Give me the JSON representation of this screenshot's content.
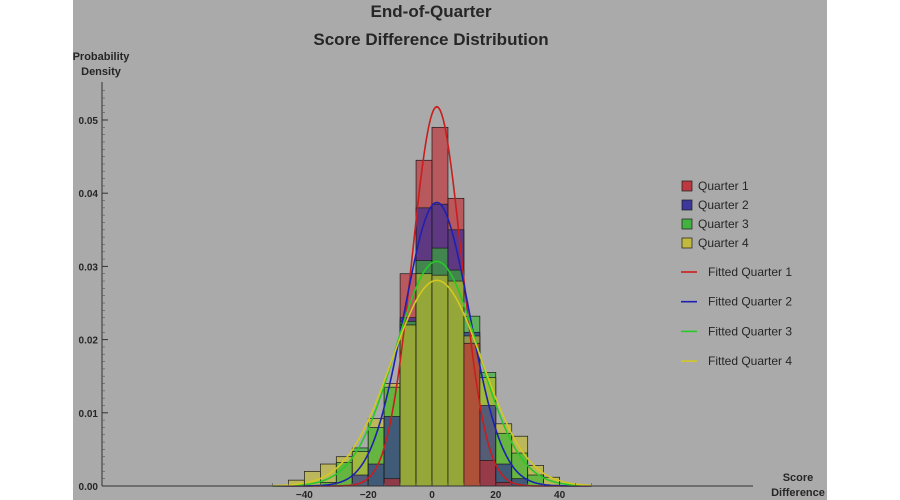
{
  "chart_data": {
    "type": "bar",
    "title": [
      "End-of-Quarter",
      "Score Difference Distribution"
    ],
    "ylabel": [
      "Probability",
      "Density"
    ],
    "xlabel": [
      "Score",
      "Difference"
    ],
    "xlim": [
      -50,
      50
    ],
    "ylim": [
      0,
      0.055
    ],
    "xticks": [
      -40,
      -20,
      0,
      20,
      40
    ],
    "xtick_labels": [
      "−40",
      "−20",
      "0",
      "20",
      "40"
    ],
    "yticks": [
      0,
      0.01,
      0.02,
      0.03,
      0.04,
      0.05
    ],
    "ytick_labels": [
      "0.00",
      "0.01",
      "0.02",
      "0.03",
      "0.04",
      "0.05"
    ],
    "bin_edges": [
      -50,
      -45,
      -40,
      -35,
      -30,
      -25,
      -20,
      -15,
      -10,
      -5,
      0,
      5,
      10,
      15,
      20,
      25,
      30,
      35,
      40,
      45,
      50
    ],
    "legend_position": "right",
    "series": [
      {
        "name": "Quarter 1",
        "color": "#c0272d",
        "values": [
          0,
          0,
          0,
          0,
          0,
          0,
          0,
          0.001,
          0.029,
          0.0445,
          0.049,
          0.0393,
          0.0195,
          0.0035,
          0.0005,
          0,
          0,
          0,
          0,
          0
        ]
      },
      {
        "name": "Quarter 2",
        "color": "#29249a",
        "values": [
          0,
          0,
          0,
          0,
          0,
          0.0015,
          0.003,
          0.0095,
          0.023,
          0.038,
          0.0385,
          0.035,
          0.021,
          0.011,
          0.003,
          0.001,
          0,
          0,
          0,
          0
        ]
      },
      {
        "name": "Quarter 3",
        "color": "#31b42f",
        "values": [
          0,
          0,
          0,
          0.0005,
          0.0032,
          0.0052,
          0.008,
          0.0135,
          0.0225,
          0.0308,
          0.0325,
          0.0295,
          0.0232,
          0.0155,
          0.0072,
          0.0045,
          0.0015,
          0,
          0,
          0
        ]
      },
      {
        "name": "Quarter 4",
        "color": "#c6bd2b",
        "values": [
          0,
          0.0008,
          0.002,
          0.003,
          0.004,
          0.0047,
          0.0092,
          0.014,
          0.022,
          0.029,
          0.0288,
          0.028,
          0.0205,
          0.0148,
          0.0085,
          0.0068,
          0.0028,
          0.0012,
          0,
          0
        ]
      }
    ],
    "fitted": [
      {
        "name": "Fitted Quarter 1",
        "color": "#c81e1e",
        "mean": 1.5,
        "sd": 7.7
      },
      {
        "name": "Fitted Quarter 2",
        "color": "#1e20b4",
        "mean": 1.5,
        "sd": 10.3
      },
      {
        "name": "Fitted Quarter 3",
        "color": "#28c828",
        "mean": 1.5,
        "sd": 13.0
      },
      {
        "name": "Fitted Quarter 4",
        "color": "#d2c822",
        "mean": 1.5,
        "sd": 14.2
      }
    ]
  }
}
